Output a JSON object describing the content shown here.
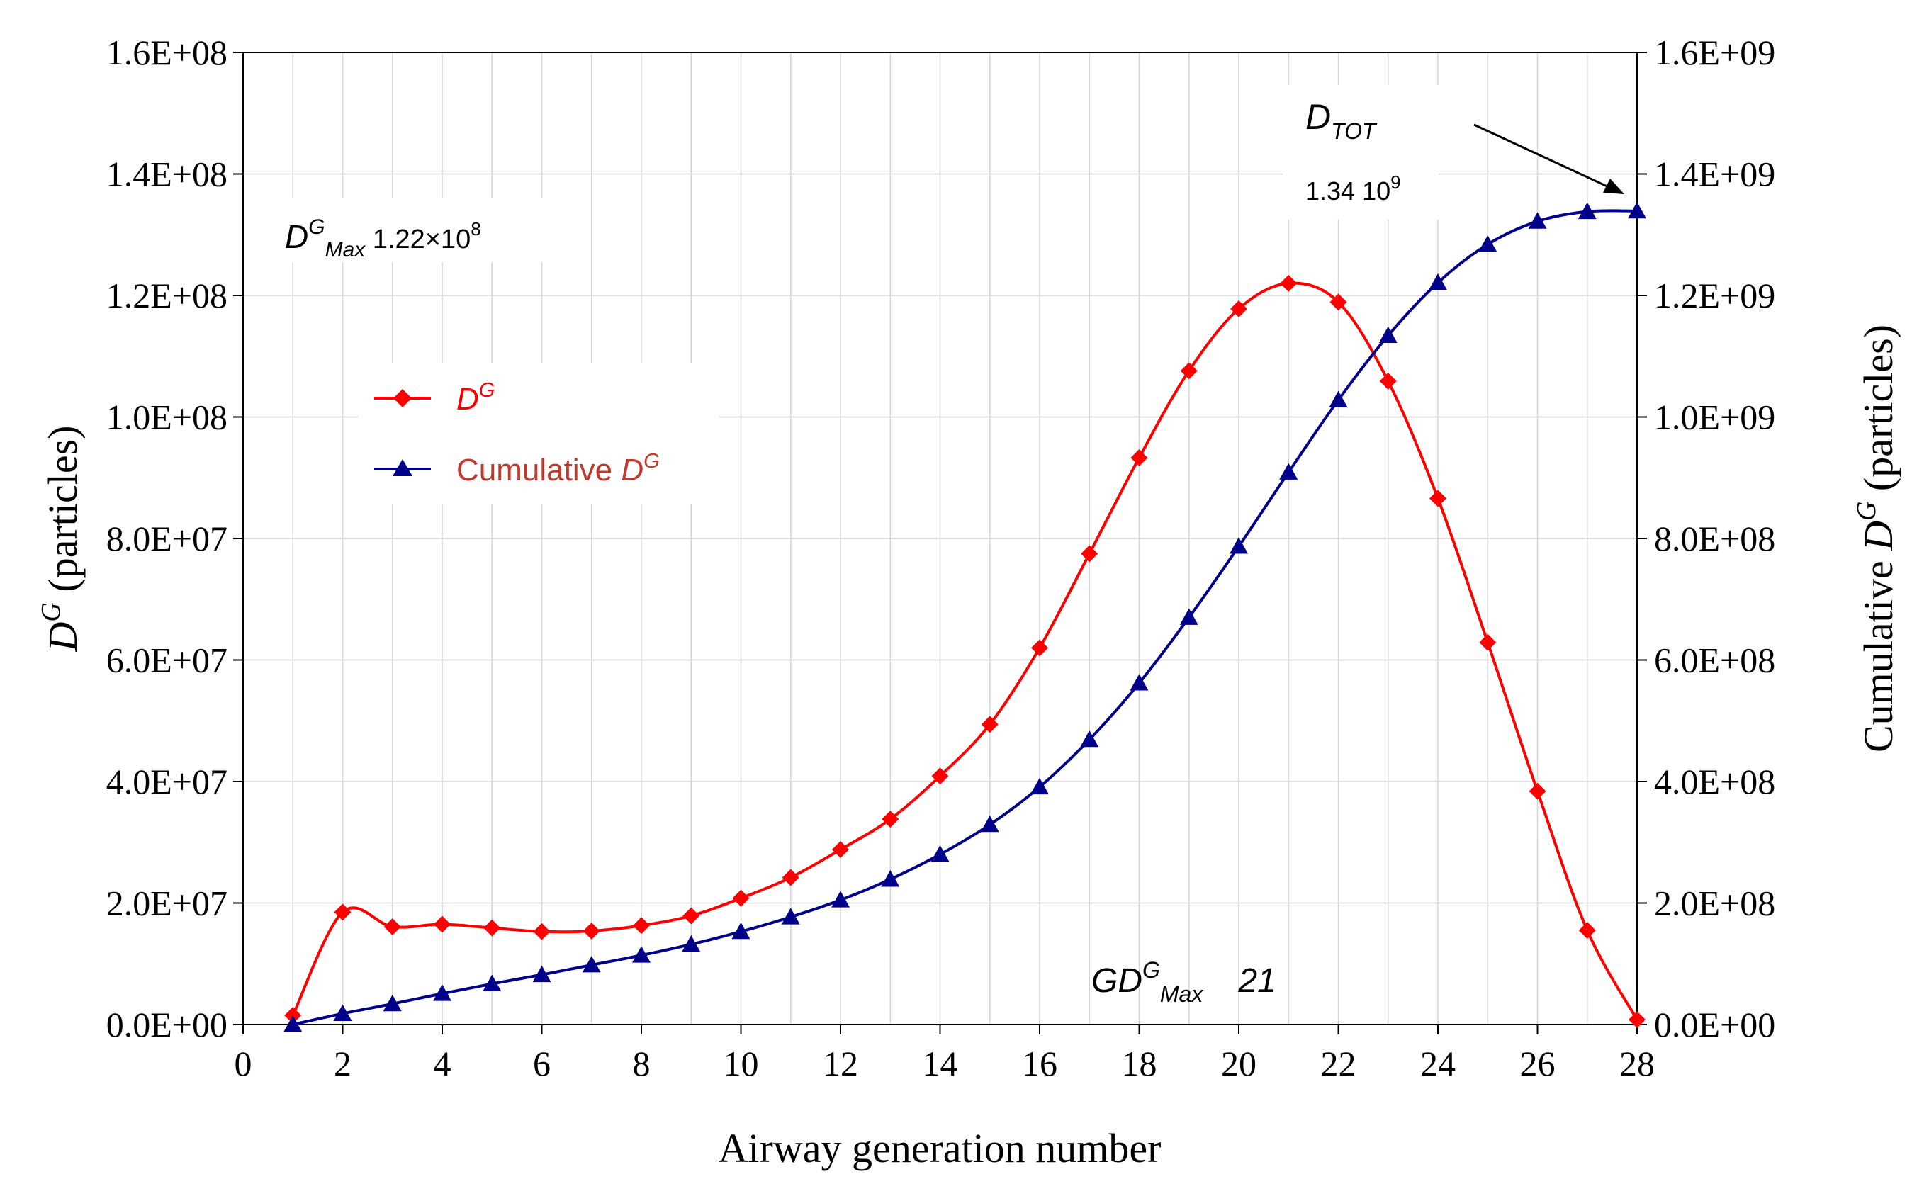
{
  "chart_data": {
    "type": "line",
    "x": [
      1,
      2,
      3,
      4,
      5,
      6,
      7,
      8,
      9,
      10,
      11,
      12,
      13,
      14,
      15,
      16,
      17,
      18,
      19,
      20,
      21,
      22,
      23,
      24,
      25,
      26,
      27,
      28
    ],
    "xlim": [
      0,
      28
    ],
    "x_ticks": [
      0,
      2,
      4,
      6,
      8,
      10,
      12,
      14,
      16,
      18,
      20,
      22,
      24,
      26,
      28
    ],
    "xlabel": "Airway generation number",
    "left_axis": {
      "ylim": [
        0,
        160000000
      ],
      "ticks": [
        0,
        20000000,
        40000000,
        60000000,
        80000000,
        100000000,
        120000000,
        140000000,
        160000000
      ],
      "tick_labels": [
        "0.0E+00",
        "2.0E+07",
        "4.0E+07",
        "6.0E+07",
        "8.0E+07",
        "1.0E+08",
        "1.2E+08",
        "1.4E+08",
        "1.6E+08"
      ],
      "label_main": "D",
      "label_sup": "G",
      "label_rest": "(particles)"
    },
    "right_axis": {
      "ylim": [
        0,
        1600000000
      ],
      "ticks": [
        0,
        200000000,
        400000000,
        600000000,
        800000000,
        1000000000,
        1200000000,
        1400000000,
        1600000000
      ],
      "tick_labels": [
        "0.0E+00",
        "2.0E+08",
        "4.0E+08",
        "6.0E+08",
        "8.0E+08",
        "1.0E+09",
        "1.2E+09",
        "1.4E+09",
        "1.6E+09"
      ],
      "label_main": "Cumulative ",
      "label_d": "D",
      "label_sup": "G",
      "label_rest": "(particles)"
    },
    "series": [
      {
        "name": "D^G",
        "axis": "left",
        "color": "#ff0000",
        "marker": "diamond",
        "values": [
          1500000,
          18500000,
          16100000,
          16500000,
          15900000,
          15300000,
          15400000,
          16300000,
          17900000,
          20800000,
          24200000,
          28800000,
          33800000,
          40900000,
          49400000,
          62000000,
          77500000,
          93300000,
          107600000,
          117800000,
          122000000,
          118900000,
          105900000,
          86600000,
          62900000,
          38400000,
          15500000,
          800000
        ]
      },
      {
        "name": "Cumulative D^G",
        "axis": "right",
        "color": "#00008b",
        "marker": "triangle",
        "values": [
          0,
          18000000,
          34000000,
          51000000,
          67000000,
          82000000,
          98000000,
          114000000,
          132000000,
          153000000,
          177000000,
          205000000,
          239000000,
          280000000,
          329000000,
          391000000,
          469000000,
          562000000,
          670000000,
          787000000,
          909000000,
          1028000000,
          1134000000,
          1221000000,
          1284000000,
          1322000000,
          1338000000,
          1339000000
        ]
      }
    ],
    "legend": {
      "placement": "upper-left",
      "items": [
        {
          "main": "D",
          "sup": "G",
          "prefix": "",
          "color": "#ff0000",
          "marker": "diamond"
        },
        {
          "main": "D",
          "sup": "G",
          "prefix": "Cumulative ",
          "color": "#00008b",
          "marker": "triangle"
        }
      ]
    },
    "annotations": {
      "max_label": {
        "main": "D",
        "sup": "G",
        "sub": "Max",
        "value": " 1.22×10",
        "exp": "8"
      },
      "tot_label": {
        "main": "D",
        "sub": "TOT",
        "value": "1.34   10",
        "exp": "9"
      },
      "gen_label": {
        "main": "GD",
        "sup": "G",
        "sub": "Max",
        "value": "21"
      }
    },
    "grid": true
  }
}
